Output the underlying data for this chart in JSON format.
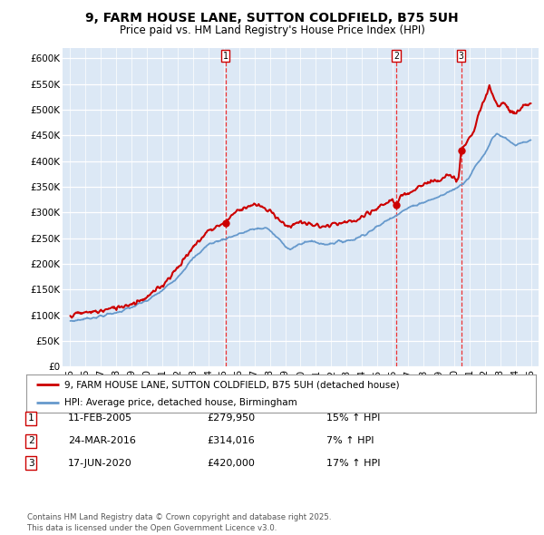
{
  "title": "9, FARM HOUSE LANE, SUTTON COLDFIELD, B75 5UH",
  "subtitle": "Price paid vs. HM Land Registry's House Price Index (HPI)",
  "bg_color": "#dce8f5",
  "ylim": [
    0,
    620000
  ],
  "yticks": [
    0,
    50000,
    100000,
    150000,
    200000,
    250000,
    300000,
    350000,
    400000,
    450000,
    500000,
    550000,
    600000
  ],
  "ytick_labels": [
    "£0",
    "£50K",
    "£100K",
    "£150K",
    "£200K",
    "£250K",
    "£300K",
    "£350K",
    "£400K",
    "£450K",
    "£500K",
    "£550K",
    "£600K"
  ],
  "xlim_start": 1994.5,
  "xlim_end": 2025.5,
  "xticks": [
    1995,
    1996,
    1997,
    1998,
    1999,
    2000,
    2001,
    2002,
    2003,
    2004,
    2005,
    2006,
    2007,
    2008,
    2009,
    2010,
    2011,
    2012,
    2013,
    2014,
    2015,
    2016,
    2017,
    2018,
    2019,
    2020,
    2021,
    2022,
    2023,
    2024,
    2025
  ],
  "red_line_color": "#cc0000",
  "blue_line_color": "#6699cc",
  "transaction_markers": [
    {
      "year": 2005.1,
      "price": 279950,
      "label": "1"
    },
    {
      "year": 2016.23,
      "price": 314016,
      "label": "2"
    },
    {
      "year": 2020.46,
      "price": 420000,
      "label": "3"
    }
  ],
  "vline_color": "#ee3333",
  "legend_label_red": "9, FARM HOUSE LANE, SUTTON COLDFIELD, B75 5UH (detached house)",
  "legend_label_blue": "HPI: Average price, detached house, Birmingham",
  "table_data": [
    {
      "num": "1",
      "date": "11-FEB-2005",
      "price": "£279,950",
      "hpi": "15% ↑ HPI"
    },
    {
      "num": "2",
      "date": "24-MAR-2016",
      "price": "£314,016",
      "hpi": "7% ↑ HPI"
    },
    {
      "num": "3",
      "date": "17-JUN-2020",
      "price": "£420,000",
      "hpi": "17% ↑ HPI"
    }
  ],
  "footer": "Contains HM Land Registry data © Crown copyright and database right 2025.\nThis data is licensed under the Open Government Licence v3.0."
}
